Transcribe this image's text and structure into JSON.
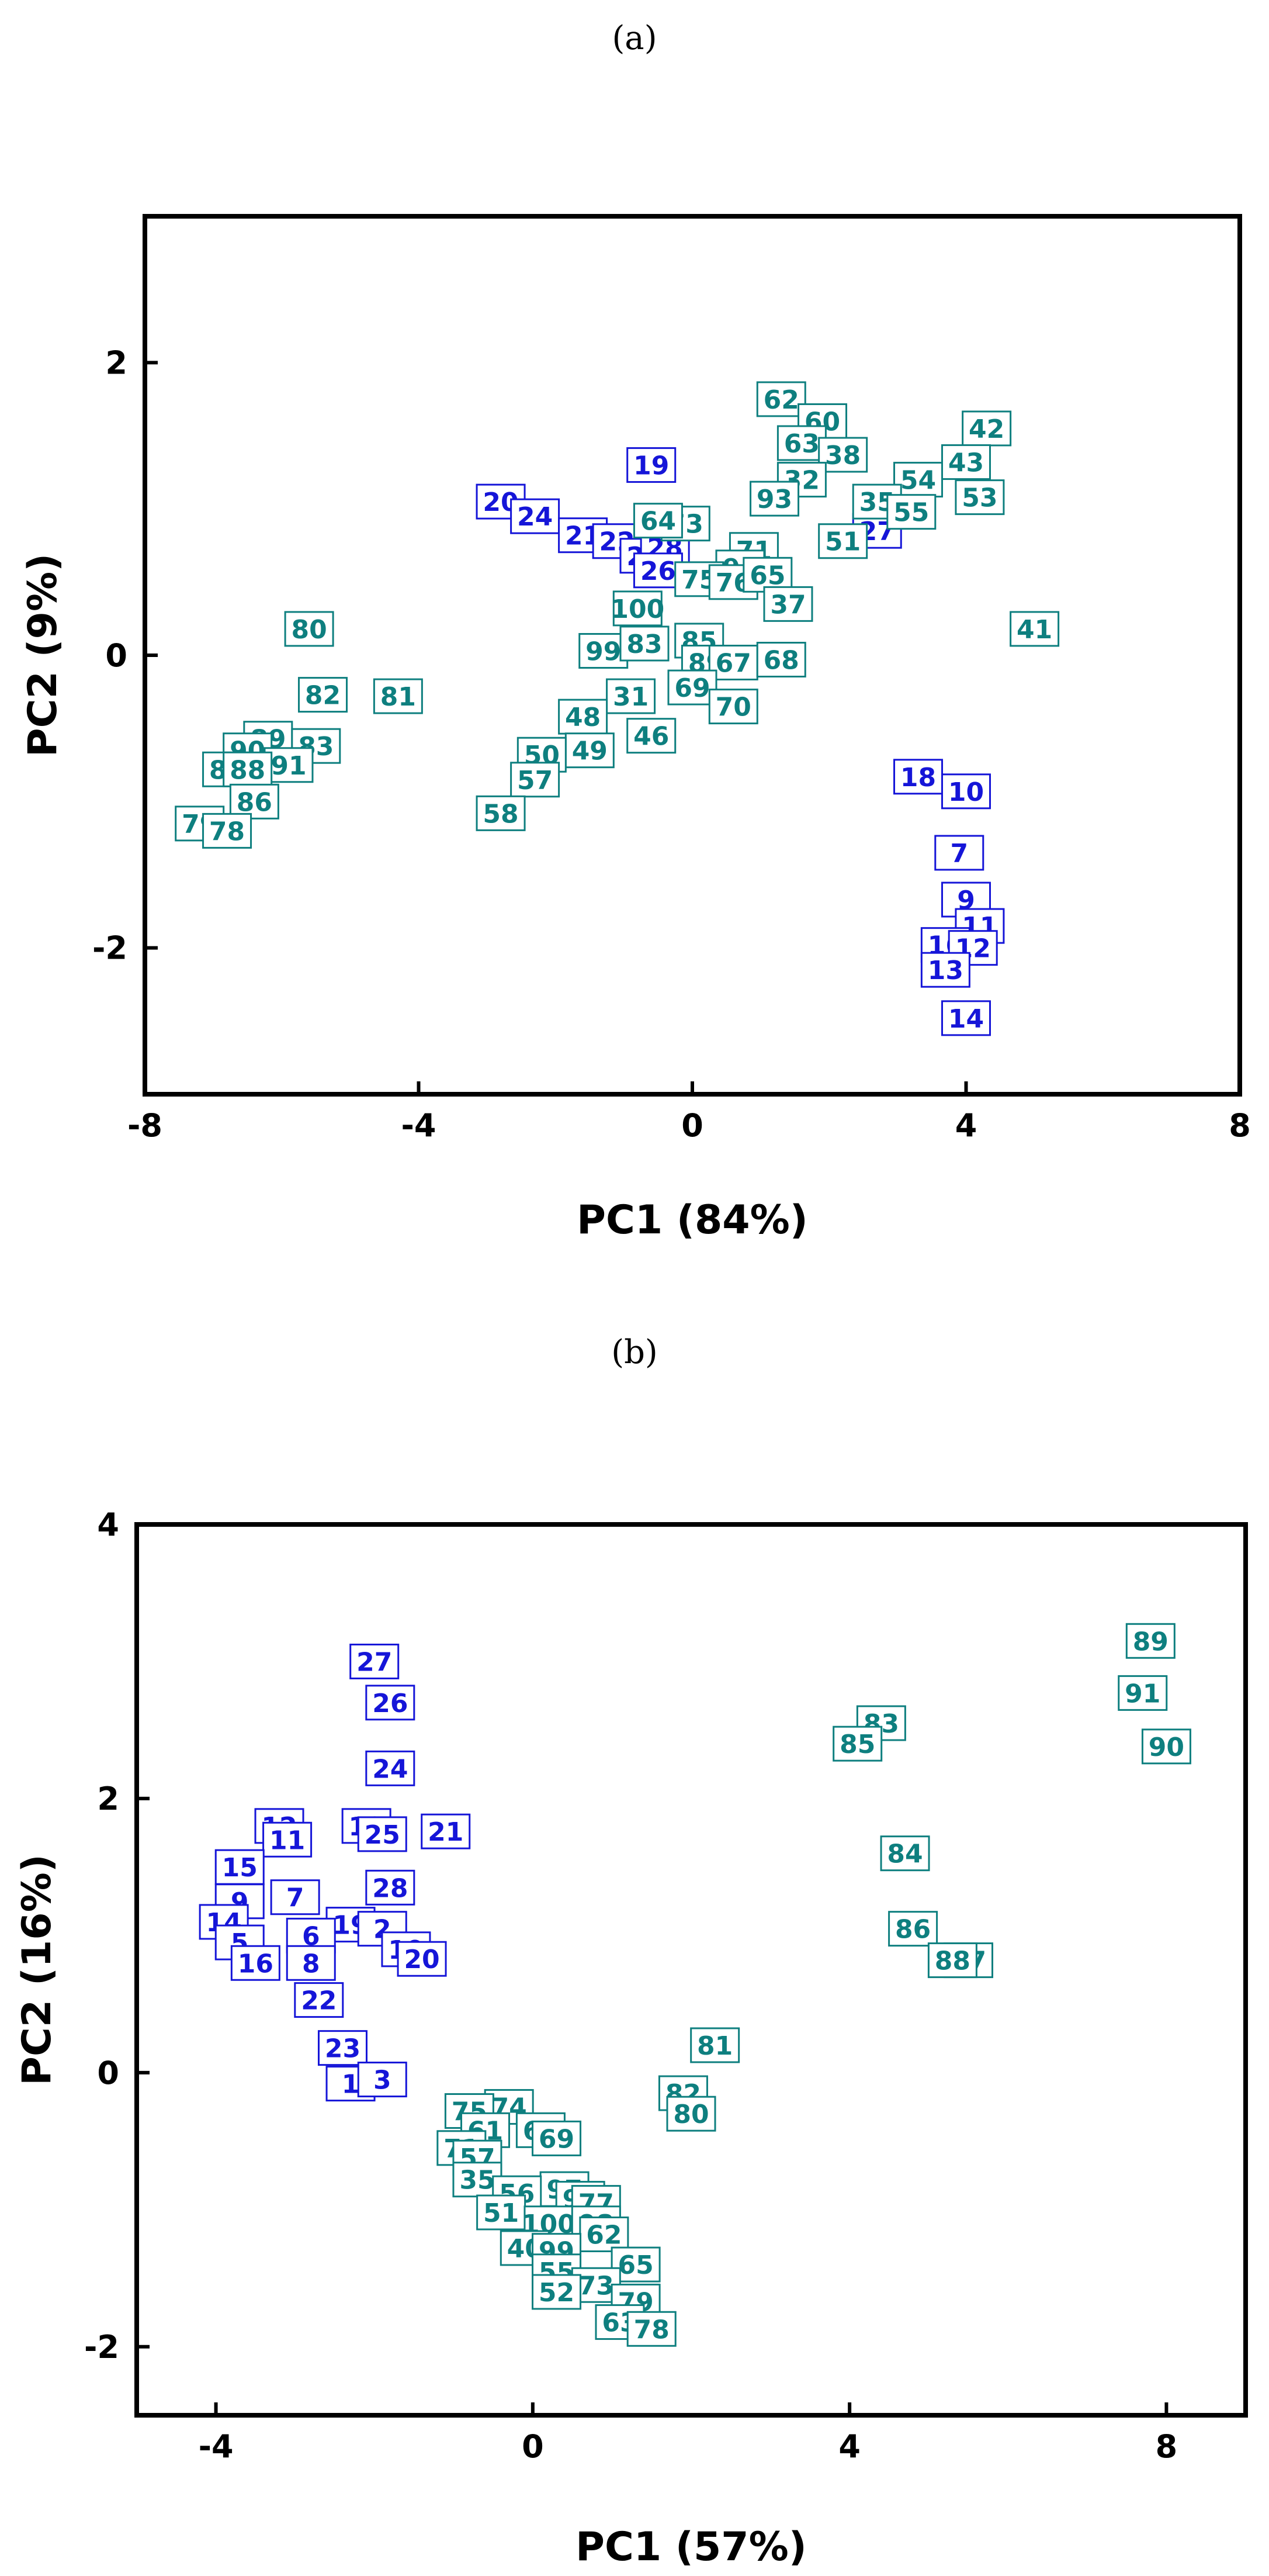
{
  "colors": {
    "group_a": "#1515d8",
    "group_b": "#0e7f7f",
    "axis": "#000000"
  },
  "chart_data": [
    {
      "panel": "(a)",
      "type": "scatter",
      "xlabel": "PC1 (84%)",
      "ylabel": "PC2 (9%)",
      "xlim": [
        -8,
        8
      ],
      "ylim": [
        -3,
        3
      ],
      "xticks": [
        -8,
        -4,
        0,
        4,
        8
      ],
      "yticks": [
        -2,
        0,
        2
      ],
      "series": [
        {
          "name": "blue",
          "color": "#1515d8",
          "points": [
            {
              "label": "19",
              "x": -0.6,
              "y": 1.3
            },
            {
              "label": "20",
              "x": -2.8,
              "y": 1.05
            },
            {
              "label": "24",
              "x": -2.3,
              "y": 0.95
            },
            {
              "label": "21",
              "x": -1.6,
              "y": 0.82
            },
            {
              "label": "22",
              "x": -1.1,
              "y": 0.78
            },
            {
              "label": "23",
              "x": -0.7,
              "y": 0.68
            },
            {
              "label": "28",
              "x": -0.4,
              "y": 0.74
            },
            {
              "label": "26",
              "x": -0.5,
              "y": 0.58
            },
            {
              "label": "27",
              "x": 2.7,
              "y": 0.85
            },
            {
              "label": "18",
              "x": 3.3,
              "y": -0.83
            },
            {
              "label": "10",
              "x": 4.0,
              "y": -0.93
            },
            {
              "label": "7",
              "x": 3.9,
              "y": -1.35
            },
            {
              "label": "9",
              "x": 4.0,
              "y": -1.67
            },
            {
              "label": "11",
              "x": 4.2,
              "y": -1.85
            },
            {
              "label": "16",
              "x": 3.7,
              "y": -1.98
            },
            {
              "label": "12",
              "x": 4.1,
              "y": -2.0
            },
            {
              "label": "13",
              "x": 3.7,
              "y": -2.15
            },
            {
              "label": "14",
              "x": 4.0,
              "y": -2.48
            }
          ]
        },
        {
          "name": "teal",
          "color": "#0e7f7f",
          "points": [
            {
              "label": "62",
              "x": 1.3,
              "y": 1.75
            },
            {
              "label": "60",
              "x": 1.9,
              "y": 1.6
            },
            {
              "label": "63",
              "x": 1.6,
              "y": 1.45
            },
            {
              "label": "38",
              "x": 2.2,
              "y": 1.37
            },
            {
              "label": "32",
              "x": 1.6,
              "y": 1.2
            },
            {
              "label": "93",
              "x": 1.2,
              "y": 1.07
            },
            {
              "label": "42",
              "x": 4.3,
              "y": 1.55
            },
            {
              "label": "43",
              "x": 4.0,
              "y": 1.32
            },
            {
              "label": "54",
              "x": 3.3,
              "y": 1.2
            },
            {
              "label": "53",
              "x": 4.2,
              "y": 1.08
            },
            {
              "label": "35",
              "x": 2.7,
              "y": 1.05
            },
            {
              "label": "55",
              "x": 3.2,
              "y": 0.98
            },
            {
              "label": "51",
              "x": 2.2,
              "y": 0.78
            },
            {
              "label": "73",
              "x": -0.1,
              "y": 0.9
            },
            {
              "label": "64",
              "x": -0.5,
              "y": 0.92
            },
            {
              "label": "71",
              "x": 0.9,
              "y": 0.72
            },
            {
              "label": "94",
              "x": 0.7,
              "y": 0.6
            },
            {
              "label": "75",
              "x": 0.1,
              "y": 0.52
            },
            {
              "label": "76",
              "x": 0.6,
              "y": 0.5
            },
            {
              "label": "65",
              "x": 1.1,
              "y": 0.55
            },
            {
              "label": "37",
              "x": 1.4,
              "y": 0.35
            },
            {
              "label": "100",
              "x": -0.8,
              "y": 0.32
            },
            {
              "label": "99",
              "x": -1.3,
              "y": 0.03
            },
            {
              "label": "83",
              "x": -0.7,
              "y": 0.08
            },
            {
              "label": "85",
              "x": 0.1,
              "y": 0.1
            },
            {
              "label": "89",
              "x": 0.2,
              "y": -0.05
            },
            {
              "label": "67",
              "x": 0.6,
              "y": -0.05
            },
            {
              "label": "68",
              "x": 1.3,
              "y": -0.03
            },
            {
              "label": "69",
              "x": 0.0,
              "y": -0.22
            },
            {
              "label": "70",
              "x": 0.6,
              "y": -0.35
            },
            {
              "label": "31",
              "x": -0.9,
              "y": -0.28
            },
            {
              "label": "48",
              "x": -1.6,
              "y": -0.42
            },
            {
              "label": "46",
              "x": -0.6,
              "y": -0.55
            },
            {
              "label": "49",
              "x": -1.5,
              "y": -0.65
            },
            {
              "label": "50",
              "x": -2.2,
              "y": -0.68
            },
            {
              "label": "57",
              "x": -2.3,
              "y": -0.85
            },
            {
              "label": "58",
              "x": -2.8,
              "y": -1.08
            },
            {
              "label": "80",
              "x": -5.6,
              "y": 0.18
            },
            {
              "label": "82",
              "x": -5.4,
              "y": -0.27
            },
            {
              "label": "81",
              "x": -4.3,
              "y": -0.28
            },
            {
              "label": "89",
              "x": -6.2,
              "y": -0.57
            },
            {
              "label": "83",
              "x": -5.5,
              "y": -0.62
            },
            {
              "label": "90",
              "x": -6.5,
              "y": -0.65
            },
            {
              "label": "91",
              "x": -5.9,
              "y": -0.75
            },
            {
              "label": "87",
              "x": -6.8,
              "y": -0.78
            },
            {
              "label": "88",
              "x": -6.5,
              "y": -0.78
            },
            {
              "label": "86",
              "x": -6.4,
              "y": -1.0
            },
            {
              "label": "79",
              "x": -7.2,
              "y": -1.15
            },
            {
              "label": "78",
              "x": -6.8,
              "y": -1.2
            },
            {
              "label": "41",
              "x": 5.0,
              "y": 0.18
            }
          ]
        }
      ]
    },
    {
      "panel": "(b)",
      "type": "scatter",
      "xlabel": "PC1 (57%)",
      "ylabel": "PC2 (16%)",
      "xlim": [
        -5,
        9
      ],
      "ylim": [
        -2.5,
        4
      ],
      "xticks": [
        -4,
        0,
        4,
        8
      ],
      "yticks": [
        -2,
        0,
        2,
        4
      ],
      "series": [
        {
          "name": "blue",
          "color": "#1515d8",
          "points": [
            {
              "label": "27",
              "x": -2.0,
              "y": 3.0
            },
            {
              "label": "26",
              "x": -1.8,
              "y": 2.7
            },
            {
              "label": "24",
              "x": -1.8,
              "y": 2.22
            },
            {
              "label": "12",
              "x": -3.2,
              "y": 1.8
            },
            {
              "label": "11",
              "x": -3.1,
              "y": 1.7
            },
            {
              "label": "13",
              "x": -2.1,
              "y": 1.8
            },
            {
              "label": "25",
              "x": -1.9,
              "y": 1.74
            },
            {
              "label": "21",
              "x": -1.1,
              "y": 1.76
            },
            {
              "label": "15",
              "x": -3.7,
              "y": 1.5
            },
            {
              "label": "28",
              "x": -1.8,
              "y": 1.35
            },
            {
              "label": "7",
              "x": -3.0,
              "y": 1.28
            },
            {
              "label": "9",
              "x": -3.7,
              "y": 1.25
            },
            {
              "label": "14",
              "x": -3.9,
              "y": 1.1
            },
            {
              "label": "19",
              "x": -2.3,
              "y": 1.08
            },
            {
              "label": "2",
              "x": -1.9,
              "y": 1.05
            },
            {
              "label": "6",
              "x": -2.8,
              "y": 1.0
            },
            {
              "label": "5",
              "x": -3.7,
              "y": 0.95
            },
            {
              "label": "10",
              "x": -1.6,
              "y": 0.9
            },
            {
              "label": "20",
              "x": -1.4,
              "y": 0.83
            },
            {
              "label": "8",
              "x": -2.8,
              "y": 0.8
            },
            {
              "label": "16",
              "x": -3.5,
              "y": 0.8
            },
            {
              "label": "22",
              "x": -2.7,
              "y": 0.53
            },
            {
              "label": "23",
              "x": -2.4,
              "y": 0.18
            },
            {
              "label": "1",
              "x": -2.3,
              "y": -0.08
            },
            {
              "label": "3",
              "x": -1.9,
              "y": -0.05
            }
          ]
        },
        {
          "name": "teal",
          "color": "#0e7f7f",
          "points": [
            {
              "label": "89",
              "x": 7.8,
              "y": 3.15
            },
            {
              "label": "91",
              "x": 7.7,
              "y": 2.77
            },
            {
              "label": "90",
              "x": 8.0,
              "y": 2.38
            },
            {
              "label": "83",
              "x": 4.4,
              "y": 2.55
            },
            {
              "label": "85",
              "x": 4.1,
              "y": 2.4
            },
            {
              "label": "84",
              "x": 4.7,
              "y": 1.6
            },
            {
              "label": "86",
              "x": 4.8,
              "y": 1.05
            },
            {
              "label": "87",
              "x": 5.5,
              "y": 0.82
            },
            {
              "label": "88",
              "x": 5.3,
              "y": 0.82
            },
            {
              "label": "81",
              "x": 2.3,
              "y": 0.2
            },
            {
              "label": "82",
              "x": 1.9,
              "y": -0.15
            },
            {
              "label": "80",
              "x": 2.0,
              "y": -0.3
            },
            {
              "label": "74",
              "x": -0.3,
              "y": -0.25
            },
            {
              "label": "75",
              "x": -0.8,
              "y": -0.28
            },
            {
              "label": "61",
              "x": -0.6,
              "y": -0.42
            },
            {
              "label": "67",
              "x": 0.1,
              "y": -0.42
            },
            {
              "label": "69",
              "x": 0.3,
              "y": -0.48
            },
            {
              "label": "71",
              "x": -0.9,
              "y": -0.55
            },
            {
              "label": "57",
              "x": -0.7,
              "y": -0.62
            },
            {
              "label": "35",
              "x": -0.7,
              "y": -0.78
            },
            {
              "label": "97",
              "x": 0.4,
              "y": -0.85
            },
            {
              "label": "56",
              "x": -0.2,
              "y": -0.88
            },
            {
              "label": "92",
              "x": 0.6,
              "y": -0.92
            },
            {
              "label": "77",
              "x": 0.8,
              "y": -0.95
            },
            {
              "label": "51",
              "x": -0.4,
              "y": -1.02
            },
            {
              "label": "100",
              "x": 0.2,
              "y": -1.1
            },
            {
              "label": "98",
              "x": 0.8,
              "y": -1.1
            },
            {
              "label": "62",
              "x": 0.9,
              "y": -1.18
            },
            {
              "label": "40",
              "x": -0.1,
              "y": -1.28
            },
            {
              "label": "99",
              "x": 0.3,
              "y": -1.3
            },
            {
              "label": "65",
              "x": 1.3,
              "y": -1.4
            },
            {
              "label": "55",
              "x": 0.3,
              "y": -1.45
            },
            {
              "label": "73",
              "x": 0.8,
              "y": -1.55
            },
            {
              "label": "52",
              "x": 0.3,
              "y": -1.6
            },
            {
              "label": "79",
              "x": 1.3,
              "y": -1.67
            },
            {
              "label": "63",
              "x": 1.1,
              "y": -1.82
            },
            {
              "label": "78",
              "x": 1.5,
              "y": -1.87
            }
          ]
        }
      ]
    }
  ]
}
